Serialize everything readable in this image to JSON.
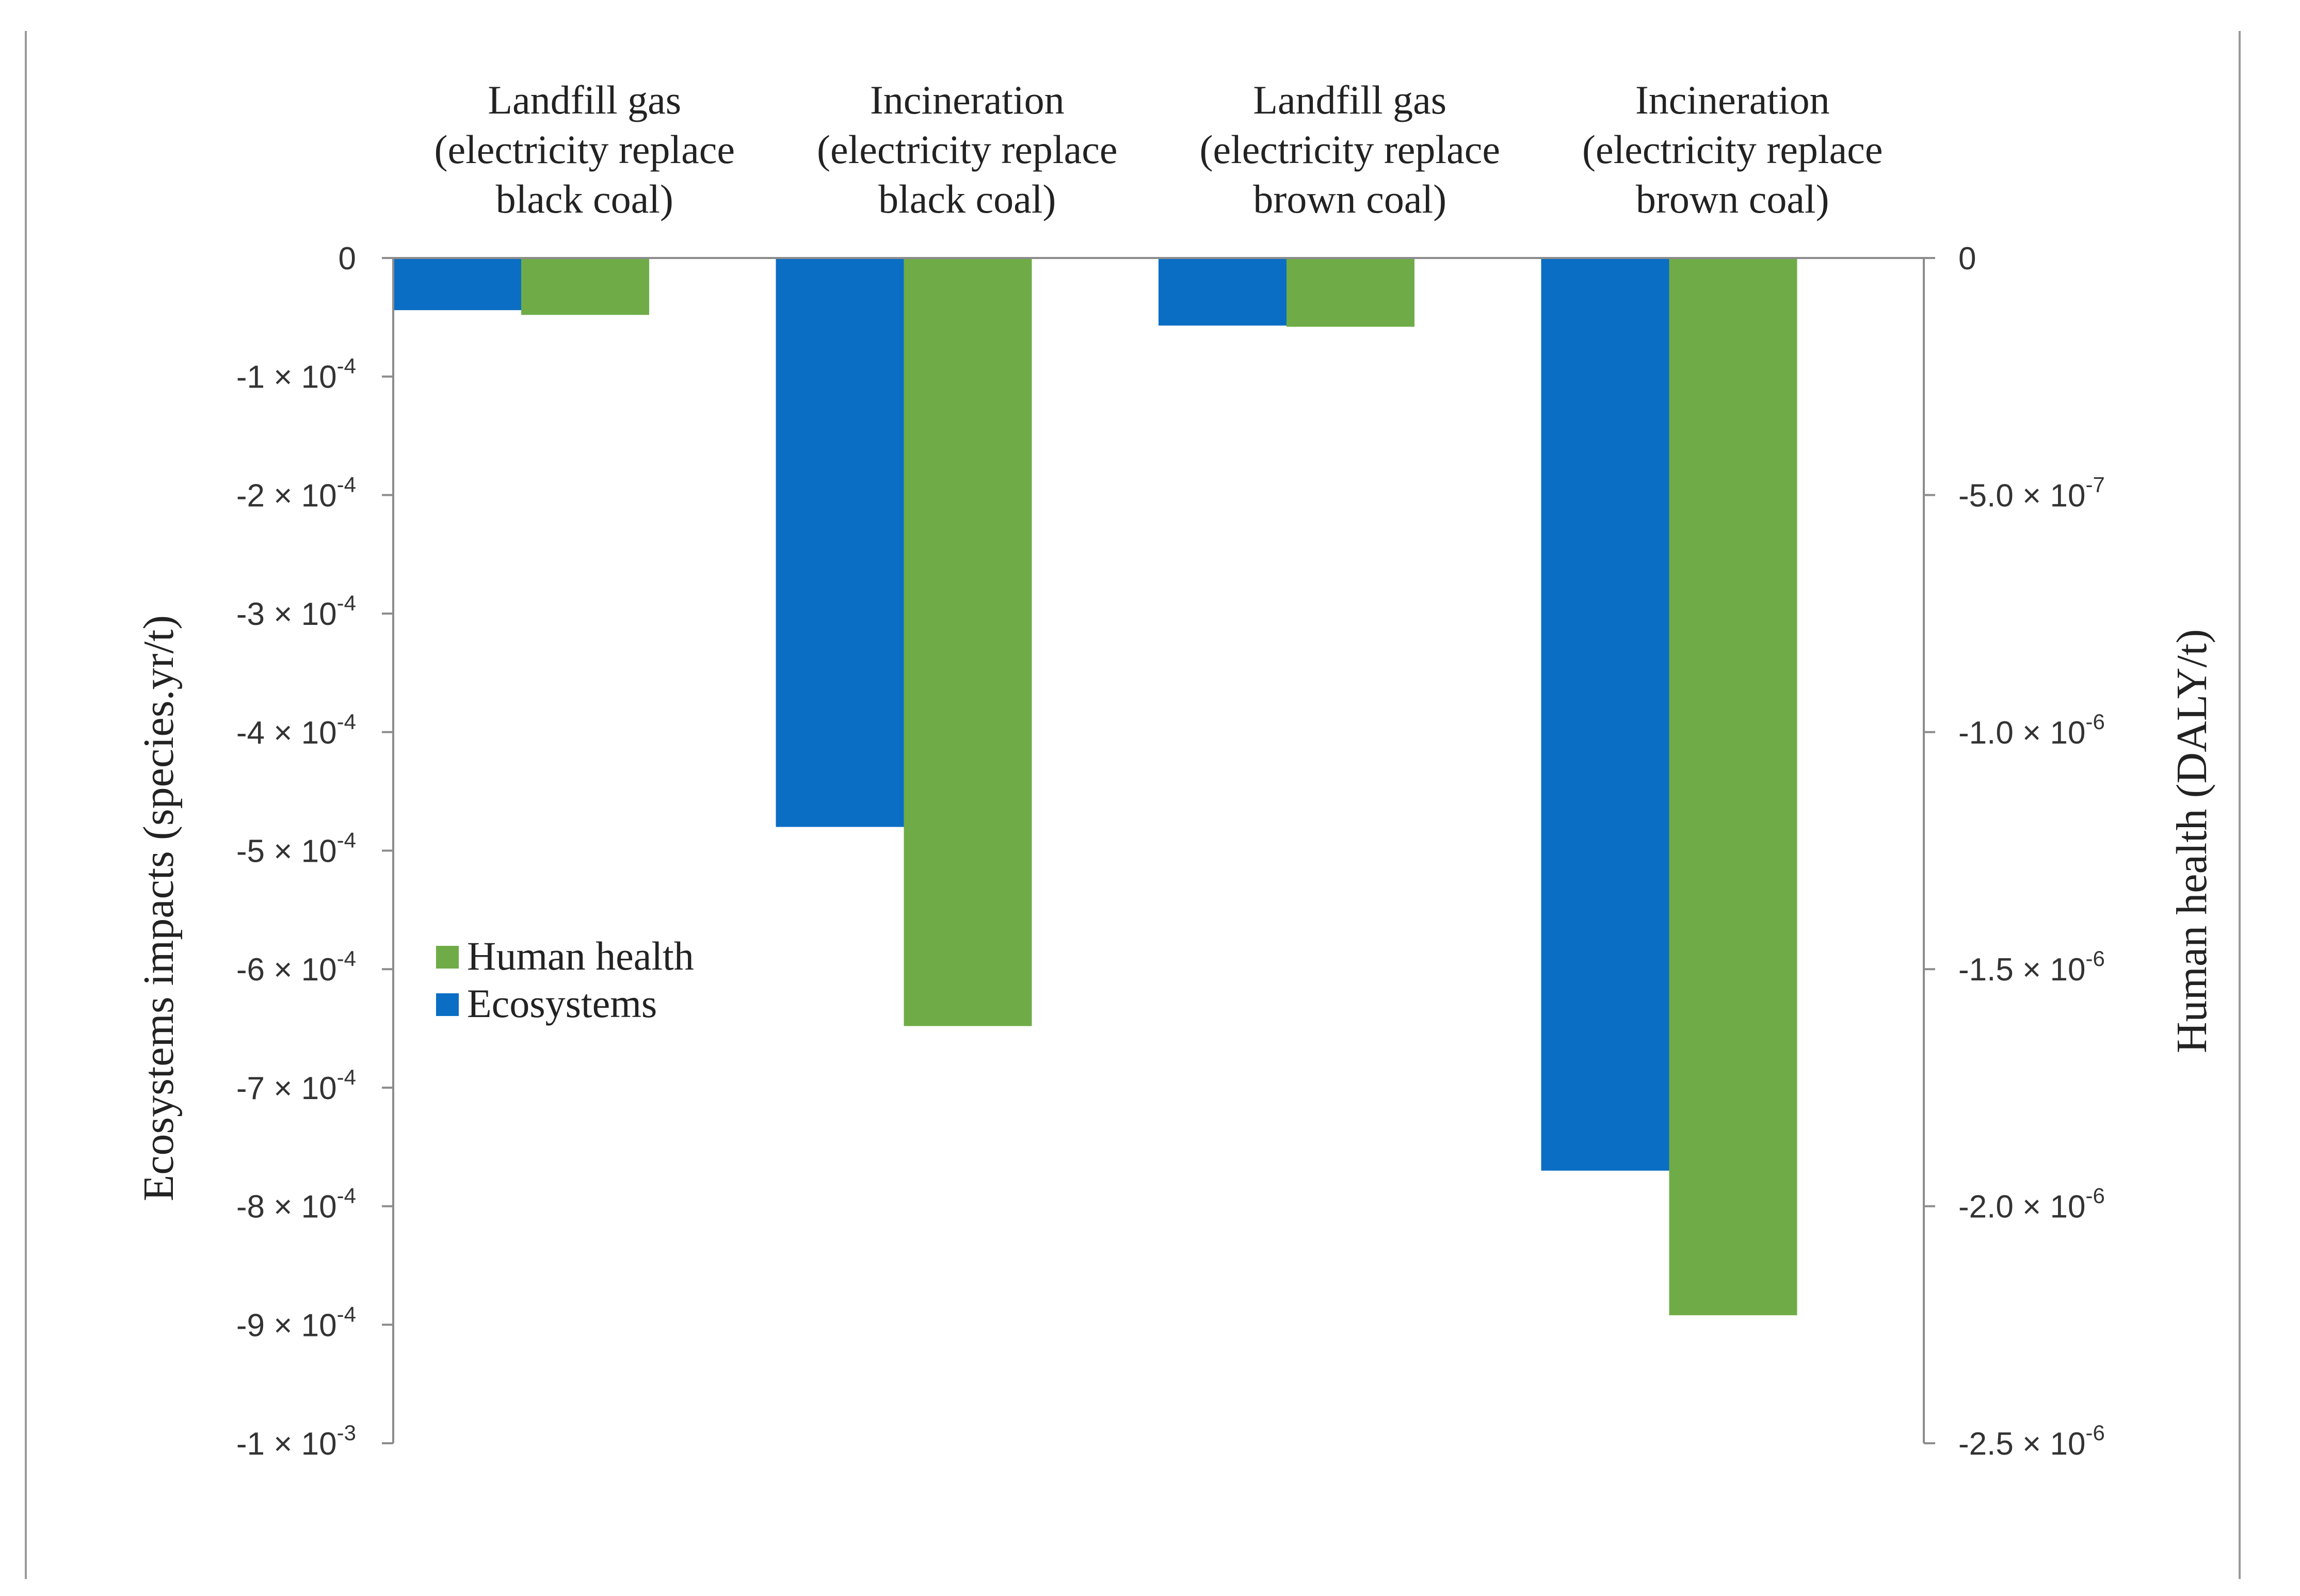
{
  "chart_data": {
    "type": "bar",
    "categories": [
      [
        "Landfill gas",
        "(electricity replace",
        "black coal)"
      ],
      [
        "Incineration",
        "(electricity replace",
        "black coal)"
      ],
      [
        "Landfill gas",
        "(electricity replace",
        "brown coal)"
      ],
      [
        "Incineration",
        "(electricity replace",
        "brown coal)"
      ]
    ],
    "series": [
      {
        "name": "Ecosystems",
        "axis": "left",
        "color": "#0a6ec4",
        "values": [
          -4.4e-05,
          -0.00048,
          -5.7e-05,
          -0.00077
        ]
      },
      {
        "name": "Human health",
        "axis": "right",
        "color": "#6fac47",
        "values": [
          -1.2e-07,
          -1.62e-06,
          -1.45e-07,
          -2.23e-06
        ]
      }
    ],
    "ylabel_left": "Ecosystems impacts (species.yr/t)",
    "ylabel_right": "Human health (DALY/t)",
    "ylim_left": [
      -0.001,
      0
    ],
    "ylim_right": [
      -2.5e-06,
      0
    ],
    "left_ticks": [
      {
        "value": 0,
        "mantissa": "0",
        "exp": ""
      },
      {
        "value": -0.0001,
        "mantissa": "-1 × 10",
        "exp": "-4"
      },
      {
        "value": -0.0002,
        "mantissa": "-2 × 10",
        "exp": "-4"
      },
      {
        "value": -0.0003,
        "mantissa": "-3 × 10",
        "exp": "-4"
      },
      {
        "value": -0.0004,
        "mantissa": "-4 × 10",
        "exp": "-4"
      },
      {
        "value": -0.0005,
        "mantissa": "-5 × 10",
        "exp": "-4"
      },
      {
        "value": -0.0006,
        "mantissa": "-6 × 10",
        "exp": "-4"
      },
      {
        "value": -0.0007,
        "mantissa": "-7 × 10",
        "exp": "-4"
      },
      {
        "value": -0.0008,
        "mantissa": "-8 × 10",
        "exp": "-4"
      },
      {
        "value": -0.0009,
        "mantissa": "-9 × 10",
        "exp": "-4"
      },
      {
        "value": -0.001,
        "mantissa": "-1 × 10",
        "exp": "-3"
      }
    ],
    "right_ticks": [
      {
        "value": 0,
        "mantissa": "0",
        "exp": ""
      },
      {
        "value": -5e-07,
        "mantissa": "-5.0 × 10",
        "exp": "-7"
      },
      {
        "value": -1e-06,
        "mantissa": "-1.0 × 10",
        "exp": "-6"
      },
      {
        "value": -1.5e-06,
        "mantissa": "-1.5 × 10",
        "exp": "-6"
      },
      {
        "value": -2e-06,
        "mantissa": "-2.0 × 10",
        "exp": "-6"
      },
      {
        "value": -2.5e-06,
        "mantissa": "-2.5 × 10",
        "exp": "-6"
      }
    ],
    "legend": {
      "placement": "middle-left",
      "entries": [
        "Human health",
        "Ecosystems"
      ]
    },
    "grid": false
  }
}
